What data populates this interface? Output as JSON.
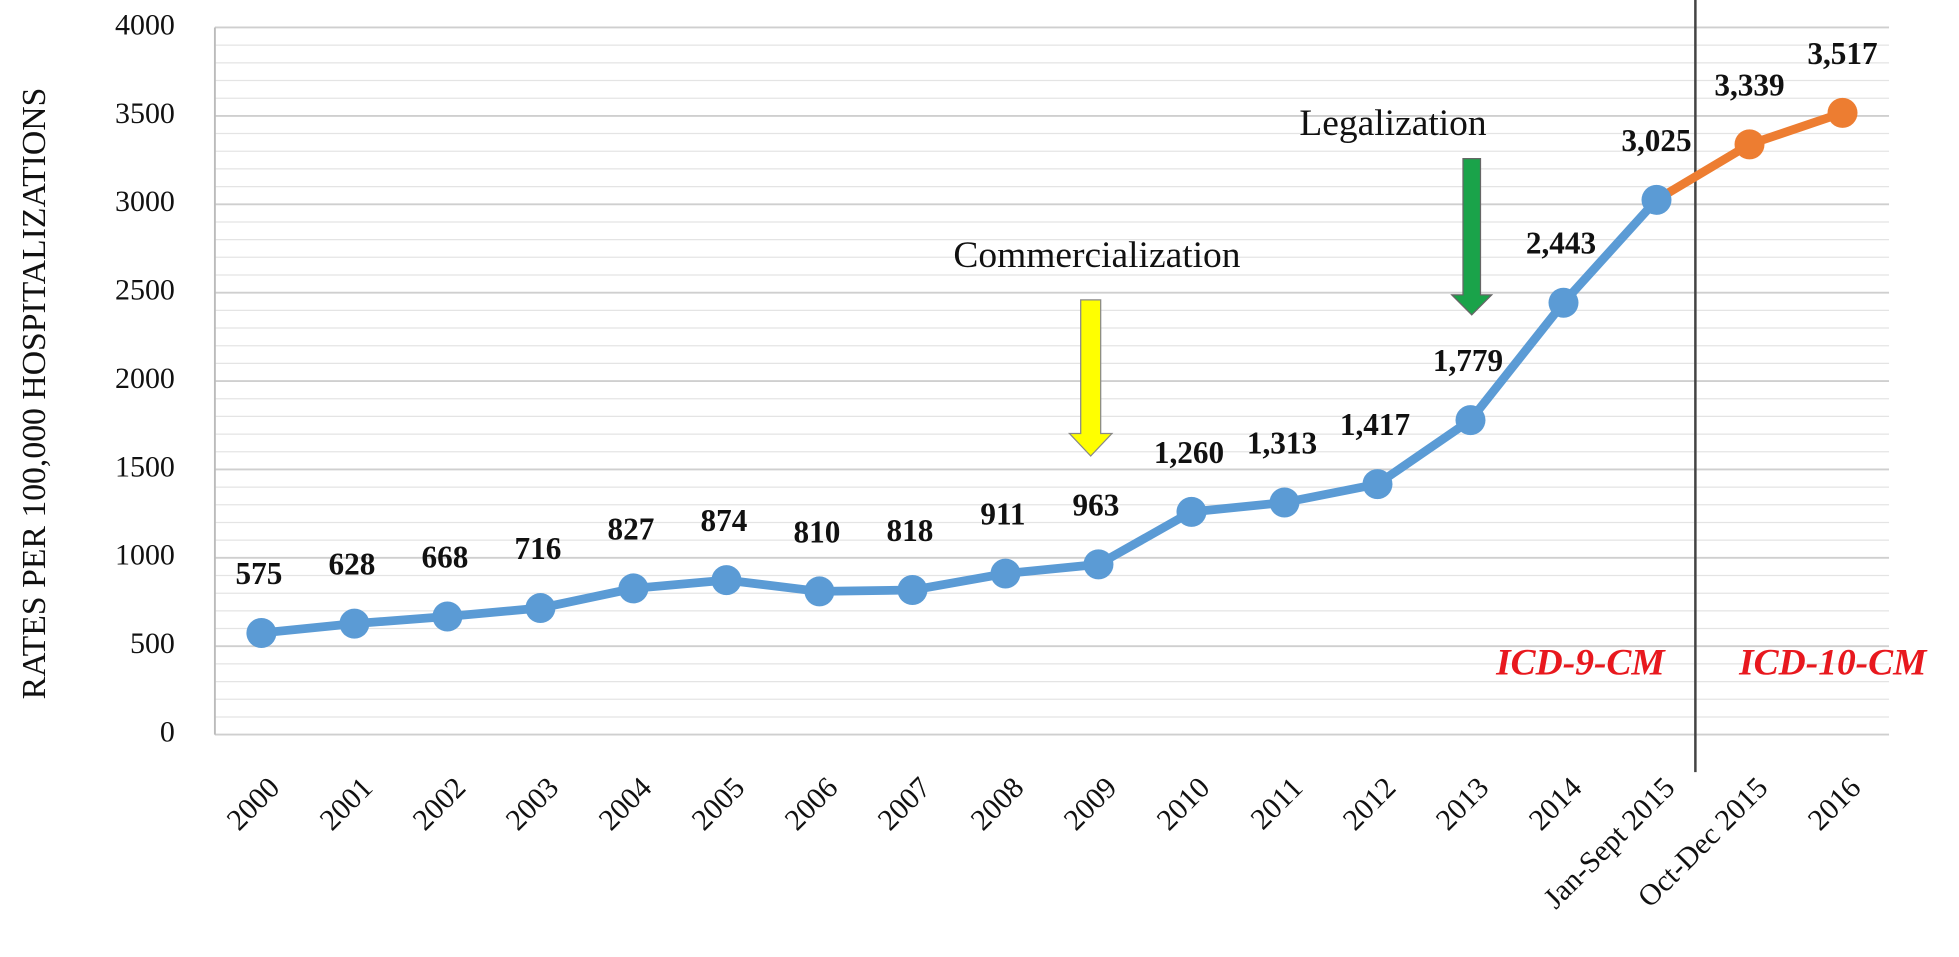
{
  "chart_data": {
    "type": "line",
    "y_label": "RATES PER 100,000 HOSPITALIZATIONS",
    "categories": [
      "2000",
      "2001",
      "2002",
      "2003",
      "2004",
      "2005",
      "2006",
      "2007",
      "2008",
      "2009",
      "2010",
      "2011",
      "2012",
      "2013",
      "2014",
      "Jan-Sept 2015",
      "Oct-Dec 2015",
      "2016"
    ],
    "series": [
      {
        "color": "#5b9bd5",
        "values": [
          575,
          628,
          668,
          716,
          827,
          874,
          810,
          818,
          911,
          963,
          1260,
          1313,
          1417,
          1779,
          2443,
          3025,
          null,
          null
        ],
        "value_labels": [
          "575",
          "628",
          "668",
          "716",
          "827",
          "874",
          "810",
          "818",
          "911",
          "963",
          "1,260",
          "1,313",
          "1,417",
          "1,779",
          "2,443",
          "3,025",
          null,
          null
        ]
      },
      {
        "color": "#ed7d31",
        "values": [
          null,
          null,
          null,
          null,
          null,
          null,
          null,
          null,
          null,
          null,
          null,
          null,
          null,
          null,
          null,
          3025,
          3339,
          3517
        ],
        "value_labels": [
          null,
          null,
          null,
          null,
          null,
          null,
          null,
          null,
          null,
          null,
          null,
          null,
          null,
          null,
          null,
          null,
          "3,339",
          "3,517"
        ]
      }
    ],
    "ylim": [
      0,
      4000
    ],
    "yticks": [
      0,
      500,
      1000,
      1500,
      2000,
      2500,
      3000,
      3500,
      4000
    ],
    "grid": true,
    "annotations": [
      "Commercialization",
      "Legalization",
      "ICD-9-CM",
      "ICD-10-CM"
    ]
  }
}
